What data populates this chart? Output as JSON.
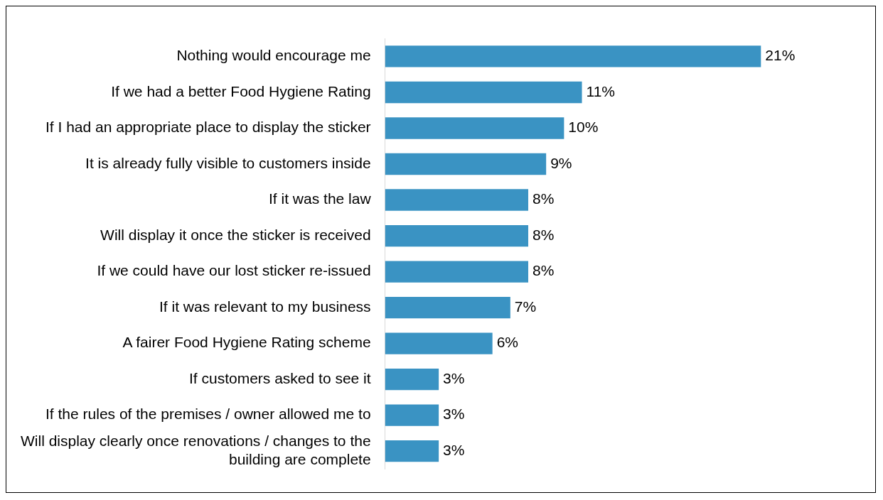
{
  "chart_data": {
    "type": "bar",
    "orientation": "horizontal",
    "categories": [
      "Nothing would encourage me",
      "If we had a better Food Hygiene Rating",
      "If I had an appropriate place to display the sticker",
      "It is already fully visible to customers inside",
      "If it was the law",
      "Will display it once the sticker is received",
      "If we could have our lost sticker re-issued",
      "If it was relevant to my business",
      "A fairer Food Hygiene Rating scheme",
      "If customers asked to see it",
      "If the rules of the premises / owner allowed me to",
      "Will display clearly once renovations / changes to the building are complete"
    ],
    "values": [
      21,
      11,
      10,
      9,
      8,
      8,
      8,
      7,
      6,
      3,
      3,
      3
    ],
    "value_labels": [
      "21%",
      "11%",
      "10%",
      "9%",
      "8%",
      "8%",
      "8%",
      "7%",
      "6%",
      "3%",
      "3%",
      "3%"
    ],
    "color": "#3a93c3",
    "tick_labels": "y"
  }
}
